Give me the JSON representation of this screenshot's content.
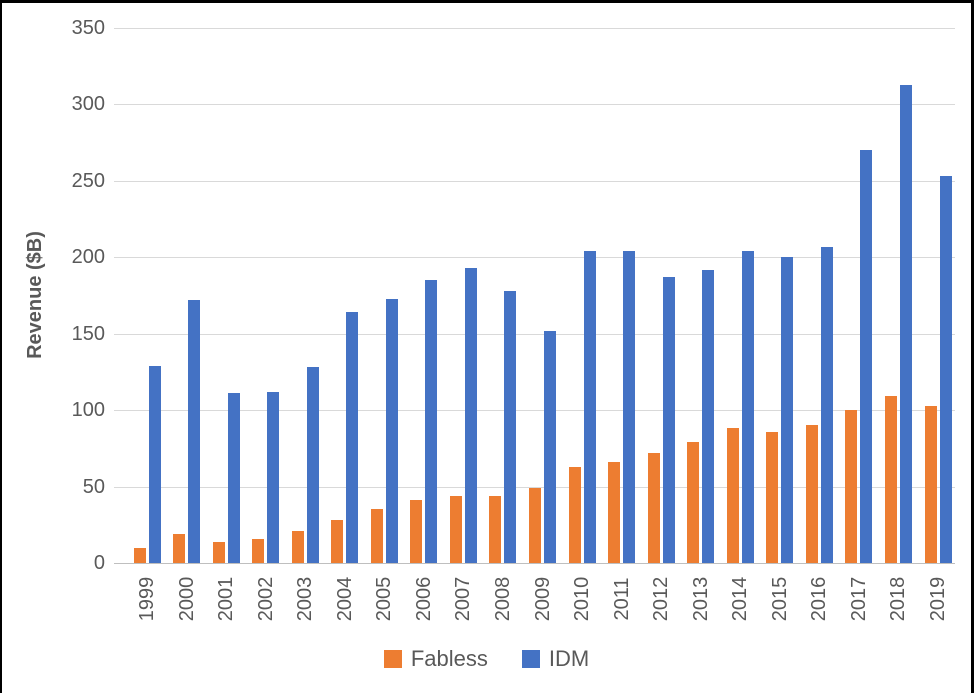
{
  "chart_data": {
    "type": "bar",
    "title": "",
    "xlabel": "",
    "ylabel": "Revenue ($B)",
    "ylim": [
      0,
      350
    ],
    "ytick_step": 50,
    "y_ticks": [
      0,
      50,
      100,
      150,
      200,
      250,
      300,
      350
    ],
    "grid": true,
    "legend_position": "bottom-center",
    "categories": [
      "1999",
      "2000",
      "2001",
      "2002",
      "2003",
      "2004",
      "2005",
      "2006",
      "2007",
      "2008",
      "2009",
      "2010",
      "2011",
      "2012",
      "2013",
      "2014",
      "2015",
      "2016",
      "2017",
      "2018",
      "2019"
    ],
    "series": [
      {
        "name": "Fabless",
        "color": "#ED7D31",
        "values": [
          10,
          19,
          14,
          16,
          21,
          28,
          35,
          41,
          44,
          44,
          49,
          63,
          66,
          72,
          79,
          88,
          86,
          90,
          100,
          109,
          103
        ]
      },
      {
        "name": "IDM",
        "color": "#4472C4",
        "values": [
          129,
          172,
          111,
          112,
          128,
          164,
          173,
          185,
          193,
          178,
          152,
          204,
          204,
          187,
          192,
          204,
          200,
          207,
          270,
          313,
          253
        ]
      }
    ]
  },
  "colors": {
    "frame_border": "#000000",
    "gridline": "#D9D9D9",
    "axis_line": "#BFBFBF",
    "tick_text": "#595959",
    "fabless": "#ED7D31",
    "idm": "#4472C4"
  }
}
